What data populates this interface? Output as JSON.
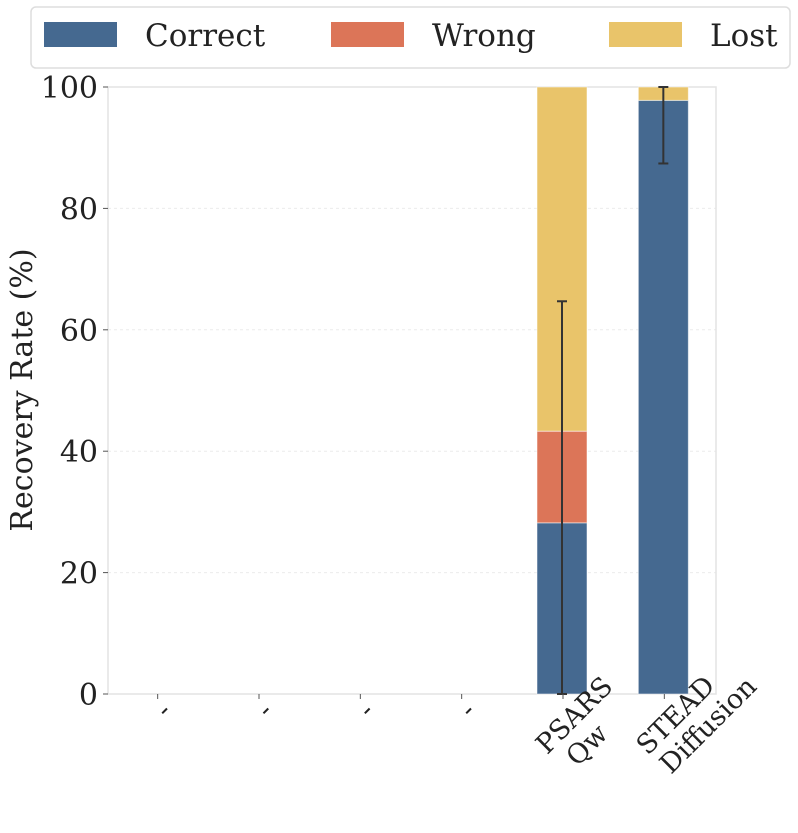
{
  "chart_data": {
    "type": "bar",
    "stacked": true,
    "title": "",
    "xlabel": "",
    "ylabel": "Recovery Rate (%)",
    "ylim": [
      0,
      100
    ],
    "yticks": [
      0,
      20,
      40,
      60,
      80,
      100
    ],
    "grid": true,
    "legend_placement": "top",
    "categories": [
      "-",
      "-",
      "-",
      "-",
      "PSARS\nQw",
      "STEAD\nDiffusion"
    ],
    "series": [
      {
        "name": "Correct",
        "color": "#456990",
        "values": [
          0,
          0,
          0,
          0,
          28.2,
          97.8
        ]
      },
      {
        "name": "Wrong",
        "color": "#dc7558",
        "values": [
          0,
          0,
          0,
          0,
          15.1,
          0
        ]
      },
      {
        "name": "Lost",
        "color": "#e9c46a",
        "values": [
          0,
          0,
          0,
          0,
          56.7,
          2.2
        ]
      }
    ],
    "error_bars": {
      "series": "Correct",
      "lower": [
        null,
        null,
        null,
        null,
        0,
        87.4
      ],
      "upper": [
        null,
        null,
        null,
        null,
        64.7,
        100
      ]
    }
  }
}
